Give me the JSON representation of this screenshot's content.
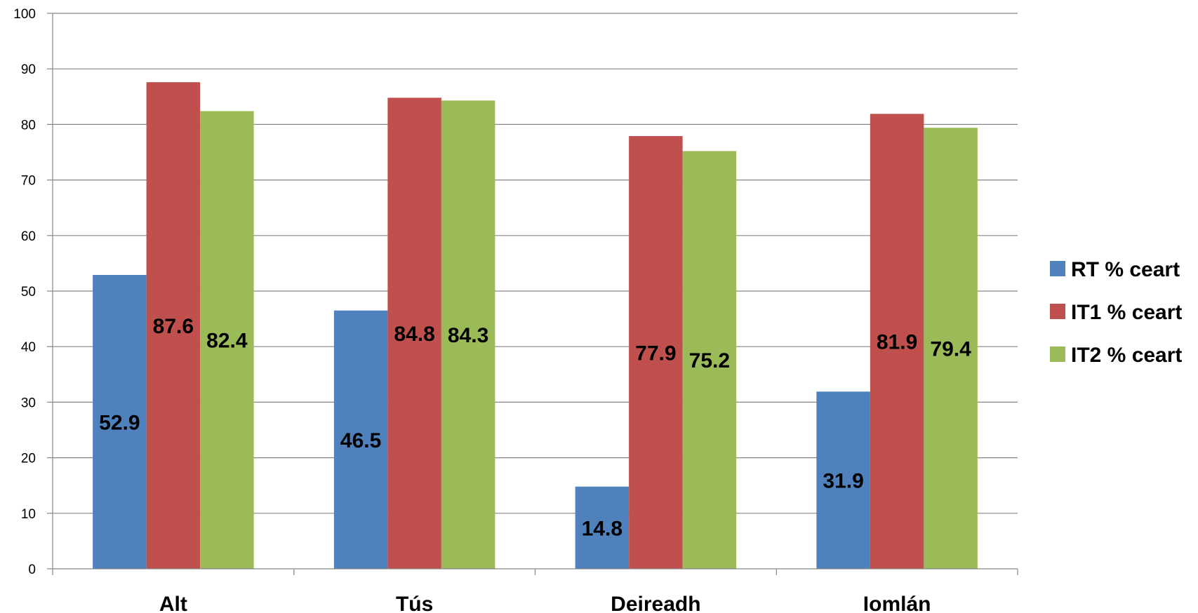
{
  "chart_data": {
    "type": "bar",
    "title": "",
    "xlabel": "",
    "ylabel": "",
    "ylim": [
      0,
      100
    ],
    "yticks": [
      0,
      10,
      20,
      30,
      40,
      50,
      60,
      70,
      80,
      90,
      100
    ],
    "grid": true,
    "legend_position": "right",
    "categories": [
      "Alt",
      "Tús",
      "Deireadh",
      "Iomlán"
    ],
    "series": [
      {
        "name": "RT % ceart",
        "color": "#4F81BD",
        "values": [
          52.9,
          46.5,
          14.8,
          31.9
        ]
      },
      {
        "name": "IT1 % ceart",
        "color": "#C0504D",
        "values": [
          87.6,
          84.8,
          77.9,
          81.9
        ]
      },
      {
        "name": "IT2 % ceart",
        "color": "#9BBB59",
        "values": [
          82.4,
          84.3,
          75.2,
          79.4
        ]
      }
    ],
    "data_labels": [
      [
        "52.9",
        "46.5",
        "14.8",
        "31.9"
      ],
      [
        "87.6",
        "84.8",
        "77.9",
        "81.9"
      ],
      [
        "82.4",
        "84.3",
        "75.2",
        "79.4"
      ]
    ]
  }
}
